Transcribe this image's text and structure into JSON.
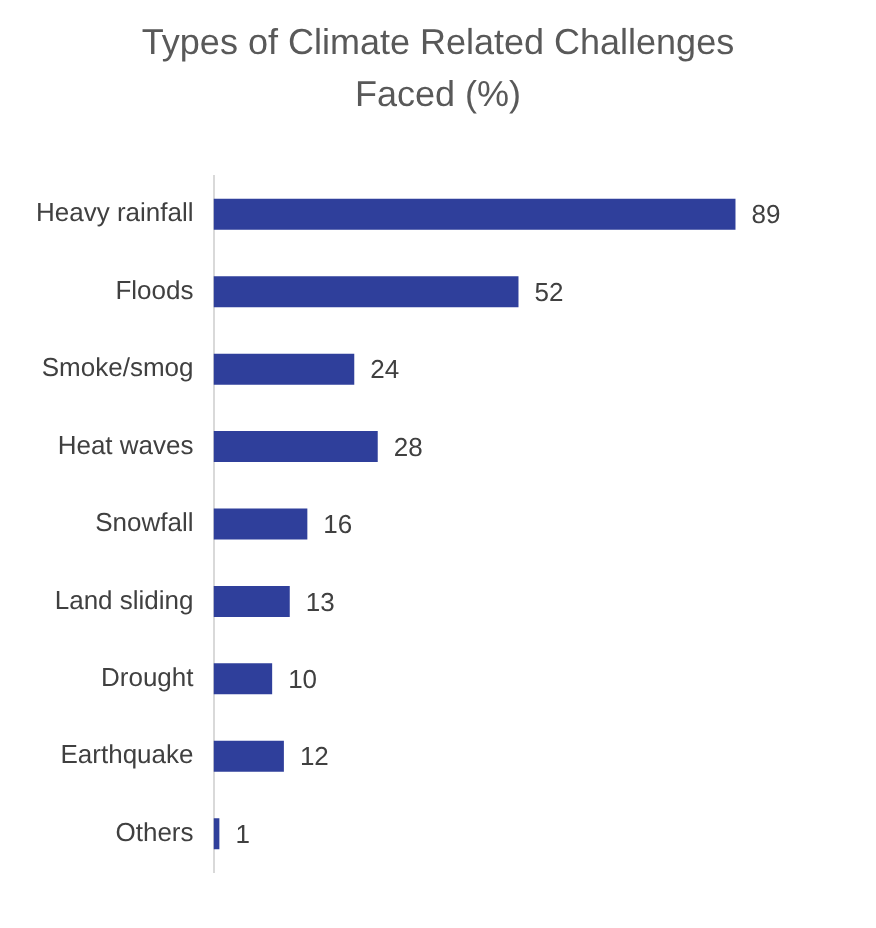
{
  "chart_data": {
    "type": "bar",
    "orientation": "horizontal",
    "title": "Types of Climate Related Challenges Faced (%)",
    "categories": [
      "Heavy rainfall",
      "Floods",
      "Smoke/smog",
      "Heat waves",
      "Snowfall",
      "Land sliding",
      "Drought",
      "Earthquake",
      "Others"
    ],
    "values": [
      89,
      52,
      24,
      28,
      16,
      13,
      10,
      12,
      1
    ],
    "color": "#2f3f9b",
    "data_labels": true
  }
}
